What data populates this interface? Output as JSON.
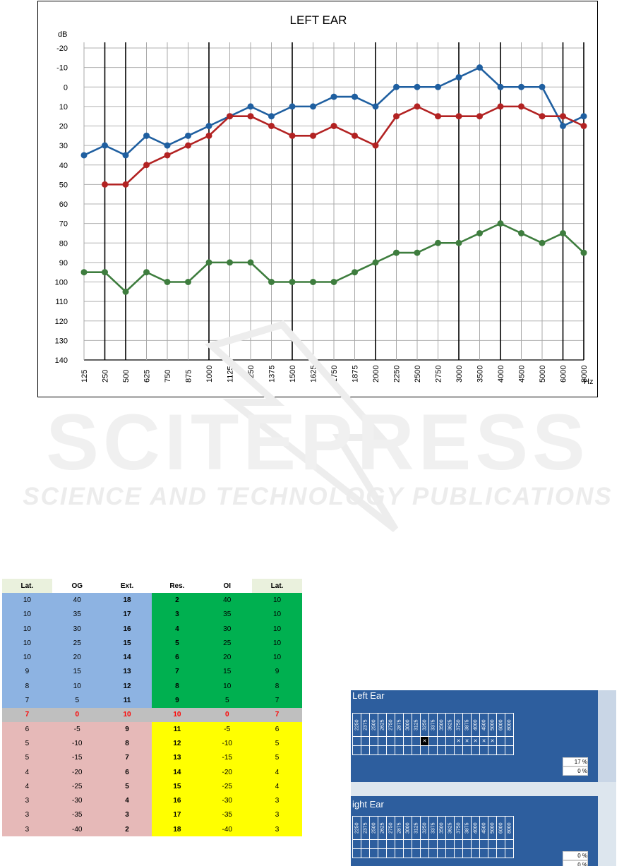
{
  "chart_data": {
    "type": "line",
    "title": "LEFT EAR",
    "ylabel": "dB",
    "xlabel": "Hz",
    "y_inverted": true,
    "ylim": [
      -20,
      140
    ],
    "yticks": [
      -20,
      -10,
      0,
      10,
      20,
      30,
      40,
      50,
      60,
      70,
      80,
      90,
      100,
      110,
      120,
      130,
      140
    ],
    "categories": [
      "125",
      "250",
      "500",
      "625",
      "750",
      "875",
      "1000",
      "1125",
      "1250",
      "1375",
      "1500",
      "1625",
      "1750",
      "1875",
      "2000",
      "2250",
      "2500",
      "2750",
      "3000",
      "3500",
      "4000",
      "4500",
      "5000",
      "6000",
      "8000"
    ],
    "bold_gridlines": [
      "250",
      "500",
      "1000",
      "1500",
      "2000",
      "3000",
      "4000",
      "6000",
      "8000"
    ],
    "grid": true,
    "series": [
      {
        "color": "#1f5fa0",
        "values": [
          35,
          30,
          35,
          25,
          30,
          25,
          20,
          15,
          10,
          15,
          10,
          10,
          5,
          5,
          10,
          0,
          0,
          0,
          -5,
          -10,
          0,
          0,
          0,
          20,
          15
        ]
      },
      {
        "color": "#b22222",
        "values": [
          null,
          50,
          50,
          40,
          35,
          30,
          25,
          15,
          15,
          20,
          25,
          25,
          20,
          25,
          30,
          15,
          10,
          15,
          15,
          15,
          10,
          10,
          15,
          15,
          20
        ]
      },
      {
        "color": "#3e7d3e",
        "values": [
          95,
          95,
          105,
          95,
          100,
          100,
          90,
          90,
          90,
          100,
          100,
          100,
          100,
          95,
          90,
          85,
          85,
          80,
          80,
          75,
          70,
          75,
          80,
          75,
          85
        ]
      }
    ]
  },
  "watermark": {
    "main": "SCITEPRESS",
    "sub": "SCIENCE AND TECHNOLOGY PUBLICATIONS"
  },
  "table": {
    "headers": [
      "Lat.",
      "OG",
      "Ext.",
      "Res.",
      "OI",
      "Lat."
    ],
    "rows": [
      [
        "10",
        "40",
        "18",
        "2",
        "40",
        "10"
      ],
      [
        "10",
        "35",
        "17",
        "3",
        "35",
        "10"
      ],
      [
        "10",
        "30",
        "16",
        "4",
        "30",
        "10"
      ],
      [
        "10",
        "25",
        "15",
        "5",
        "25",
        "10"
      ],
      [
        "10",
        "20",
        "14",
        "6",
        "20",
        "10"
      ],
      [
        "9",
        "15",
        "13",
        "7",
        "15",
        "9"
      ],
      [
        "8",
        "10",
        "12",
        "8",
        "10",
        "8"
      ],
      [
        "7",
        "5",
        "11",
        "9",
        "5",
        "7"
      ],
      [
        "7",
        "0",
        "10",
        "10",
        "0",
        "7"
      ],
      [
        "6",
        "-5",
        "9",
        "11",
        "-5",
        "6"
      ],
      [
        "5",
        "-10",
        "8",
        "12",
        "-10",
        "5"
      ],
      [
        "5",
        "-15",
        "7",
        "13",
        "-15",
        "5"
      ],
      [
        "4",
        "-20",
        "6",
        "14",
        "-20",
        "4"
      ],
      [
        "4",
        "-25",
        "5",
        "15",
        "-25",
        "4"
      ],
      [
        "3",
        "-30",
        "4",
        "16",
        "-30",
        "3"
      ],
      [
        "3",
        "-35",
        "3",
        "17",
        "-35",
        "3"
      ],
      [
        "3",
        "-40",
        "2",
        "18",
        "-40",
        "3"
      ]
    ]
  },
  "photo": {
    "left_title": "Left Ear",
    "right_title": "ight Ear",
    "frequencies": [
      "2250",
      "2375",
      "2500",
      "2625",
      "2750",
      "2875",
      "3000",
      "3125",
      "3250",
      "3375",
      "3500",
      "3625",
      "3750",
      "3875",
      "4000",
      "4500",
      "5000",
      "6000",
      "8000"
    ],
    "left_marks": [
      "",
      "",
      "",
      "",
      "",
      "",
      "",
      "",
      "X",
      "",
      "",
      "",
      "X",
      "X",
      "X",
      "X",
      "X",
      "",
      ""
    ],
    "left_pct_1": "17 %",
    "left_pct_2": "0 %",
    "right_pct_1": "0 %",
    "right_pct_2": "0 %",
    "mark_symbol": "✕"
  }
}
